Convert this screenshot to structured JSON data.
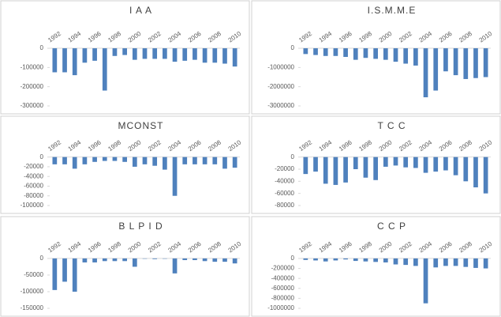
{
  "chart_data": [
    {
      "type": "bar",
      "title": "I A A",
      "color": "#4f81bd",
      "categories": [
        "1992",
        null,
        "1994",
        null,
        "1996",
        null,
        "1998",
        null,
        "2000",
        null,
        "2002",
        null,
        "2004",
        null,
        "2006",
        null,
        "2008",
        null,
        "2010"
      ],
      "values": [
        -125000,
        -125000,
        -140000,
        -75000,
        -65000,
        -220000,
        -40000,
        -35000,
        -60000,
        -55000,
        -55000,
        -55000,
        -70000,
        -65000,
        -60000,
        -75000,
        -75000,
        -80000,
        -95000
      ],
      "ylim": [
        -300000,
        0
      ],
      "yticks": [
        0,
        -100000,
        -200000,
        -300000
      ]
    },
    {
      "type": "bar",
      "title": "I.S.M.M.E",
      "color": "#4f81bd",
      "categories": [
        "1992",
        null,
        "1994",
        null,
        "1996",
        null,
        "1998",
        null,
        "2000",
        null,
        "2002",
        null,
        "2004",
        null,
        "2006",
        null,
        "2008",
        null,
        "2010"
      ],
      "values": [
        -300000,
        -350000,
        -400000,
        -400000,
        -450000,
        -600000,
        -500000,
        -550000,
        -600000,
        -700000,
        -800000,
        -900000,
        -2550000,
        -2200000,
        -1200000,
        -1400000,
        -1600000,
        -1550000,
        -1500000
      ],
      "ylim": [
        -3000000,
        0
      ],
      "yticks": [
        0,
        -1000000,
        -2000000,
        -3000000
      ]
    },
    {
      "type": "bar",
      "title": "MCONST",
      "color": "#4f81bd",
      "categories": [
        "1992",
        null,
        "1994",
        null,
        "1996",
        null,
        "1998",
        null,
        "2000",
        null,
        "2002",
        null,
        "2004",
        null,
        "2006",
        null,
        "2008",
        null,
        "2010"
      ],
      "values": [
        -15000,
        -15000,
        -24000,
        -15000,
        -10000,
        -8000,
        -8000,
        -10000,
        -20000,
        -15000,
        -18000,
        -26000,
        -80000,
        -15000,
        -15000,
        -15000,
        -15000,
        -24000,
        -22000
      ],
      "ylim": [
        -100000,
        0
      ],
      "yticks": [
        0,
        -20000,
        -40000,
        -60000,
        -80000,
        -100000
      ]
    },
    {
      "type": "bar",
      "title": "T C C",
      "color": "#4f81bd",
      "categories": [
        "1992",
        null,
        "1994",
        null,
        "1996",
        null,
        "1998",
        null,
        "2000",
        null,
        "2002",
        null,
        "2004",
        null,
        "2006",
        null,
        "2008",
        null,
        "2010"
      ],
      "values": [
        -28000,
        -24000,
        -44000,
        -46000,
        -42000,
        -20000,
        -34000,
        -38000,
        -16000,
        -14000,
        -17000,
        -18000,
        -26000,
        -24000,
        -22000,
        -30000,
        -40000,
        -50000,
        -60000
      ],
      "ylim": [
        -80000,
        0
      ],
      "yticks": [
        0,
        -20000,
        -40000,
        -60000,
        -80000
      ]
    },
    {
      "type": "bar",
      "title": "B L P I D",
      "color": "#4f81bd",
      "categories": [
        "1992",
        null,
        "1994",
        null,
        "1996",
        null,
        "1998",
        null,
        "2000",
        null,
        "2002",
        null,
        "2004",
        null,
        "2006",
        null,
        "2008",
        null,
        "2010"
      ],
      "values": [
        -95000,
        -70000,
        -100000,
        -12000,
        -12000,
        -8000,
        -8000,
        -8000,
        -25000,
        -1000,
        -2000,
        -1000,
        -45000,
        -5000,
        -5000,
        -8000,
        -10000,
        -10000,
        -15000
      ],
      "ylim": [
        -150000,
        0
      ],
      "yticks": [
        0,
        -50000,
        -100000,
        -150000
      ]
    },
    {
      "type": "bar",
      "title": "C C P",
      "color": "#4f81bd",
      "categories": [
        "1992",
        null,
        "1994",
        null,
        "1996",
        null,
        "1998",
        null,
        "2000",
        null,
        "2002",
        null,
        "2004",
        null,
        "2006",
        null,
        "2008",
        null,
        "2010"
      ],
      "values": [
        -30000,
        -40000,
        -60000,
        -40000,
        -20000,
        -50000,
        -60000,
        -70000,
        -80000,
        -120000,
        -130000,
        -150000,
        -900000,
        -180000,
        -150000,
        -150000,
        -170000,
        -190000,
        -200000
      ],
      "ylim": [
        -1000000,
        0
      ],
      "yticks": [
        0,
        -200000,
        -400000,
        -600000,
        -800000,
        -1000000
      ]
    }
  ]
}
